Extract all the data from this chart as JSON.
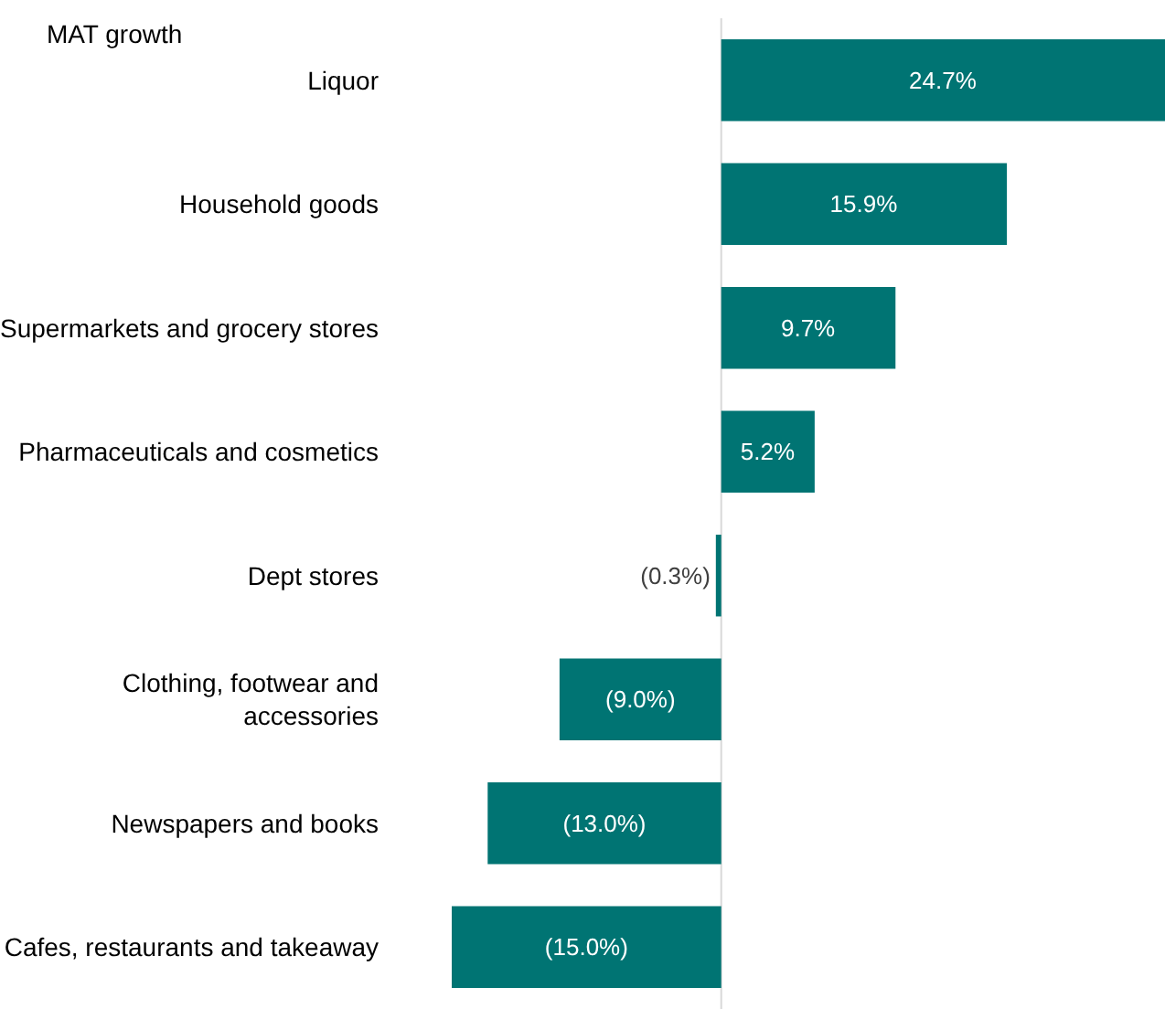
{
  "chart_data": {
    "type": "bar",
    "orientation": "horizontal",
    "title": "MAT growth",
    "categories": [
      "Liquor",
      "Household goods",
      "Supermarkets and grocery stores",
      "Pharmaceuticals and cosmetics",
      "Dept stores",
      "Clothing, footwear and accessories",
      "Newspapers and books",
      "Cafes, restaurants and takeaway"
    ],
    "values": [
      24.7,
      15.9,
      9.7,
      5.2,
      -0.3,
      -9.0,
      -13.0,
      -15.0
    ],
    "value_labels": [
      "24.7%",
      "15.9%",
      "9.7%",
      "5.2%",
      "(0.3%)",
      "(9.0%)",
      "(13.0%)",
      "(15.0%)"
    ],
    "color": "#007473",
    "ref_lines": [
      {
        "axis": "x",
        "value": 0,
        "label": null,
        "color": "#d9d9d9"
      }
    ],
    "grid": false
  }
}
